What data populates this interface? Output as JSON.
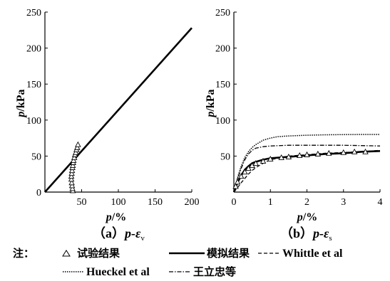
{
  "chart_data": [
    {
      "id": "a",
      "type": "line",
      "caption_prefix": "（a）",
      "caption_var": "p-ε",
      "caption_sub": "v",
      "ylabel_var": "p",
      "ylabel_unit": "/kPa",
      "xlabel_var": "p",
      "xlabel_unit": "/%",
      "xlim": [
        0,
        200
      ],
      "ylim": [
        0,
        250
      ],
      "xticks": [
        50,
        100,
        150,
        200
      ],
      "yticks": [
        0,
        50,
        100,
        150,
        200,
        250
      ],
      "series": [
        {
          "key": "model",
          "style": "solid",
          "x": [
            0,
            200
          ],
          "y": [
            0,
            228
          ]
        },
        {
          "key": "test",
          "style": "triangle",
          "x": [
            38.0,
            37.5,
            37.0,
            36.5,
            36.0,
            36.0,
            36.5,
            37.0,
            37.5,
            38.0,
            38.5,
            39.0,
            40.0,
            41.0,
            42.0,
            43.0,
            44.0,
            45.0
          ],
          "y": [
            2,
            5,
            9,
            13,
            18,
            22,
            26,
            30,
            34,
            37,
            41,
            44,
            48,
            52,
            55,
            59,
            62,
            66
          ]
        }
      ]
    },
    {
      "id": "b",
      "type": "line",
      "caption_prefix": "（b）",
      "caption_var": "p-ε",
      "caption_sub": "s",
      "ylabel_var": "p",
      "ylabel_unit": "/kPa",
      "xlabel_var": "p",
      "xlabel_unit": "/%",
      "xlim": [
        0,
        4
      ],
      "ylim": [
        0,
        250
      ],
      "xticks": [
        0,
        1,
        2,
        3,
        4
      ],
      "yticks": [
        50,
        100,
        150,
        200,
        250
      ],
      "series": [
        {
          "key": "model",
          "style": "solid",
          "x": [
            0,
            0.1,
            0.2,
            0.3,
            0.4,
            0.5,
            0.6,
            0.8,
            1.0,
            1.5,
            2.0,
            2.5,
            3.0,
            3.5,
            4.0
          ],
          "y": [
            0,
            13,
            23,
            31,
            36,
            40,
            42,
            45,
            47,
            49,
            51,
            53,
            54,
            56,
            57
          ]
        },
        {
          "key": "whittle",
          "style": "dash",
          "x": [
            0,
            0.1,
            0.2,
            0.3,
            0.4,
            0.5,
            0.6,
            0.8,
            1.0,
            1.5,
            2.0,
            2.5,
            3.0,
            3.5,
            4.0
          ],
          "y": [
            0,
            6,
            13,
            19,
            25,
            30,
            34,
            40,
            45,
            50,
            52,
            54,
            55,
            56,
            58
          ]
        },
        {
          "key": "hueckel",
          "style": "dot",
          "x": [
            0,
            0.1,
            0.2,
            0.3,
            0.4,
            0.5,
            0.6,
            0.8,
            1.0,
            1.2,
            1.5,
            2.0,
            2.5,
            3.0,
            3.5,
            4.0
          ],
          "y": [
            0,
            20,
            36,
            48,
            56,
            62,
            66,
            72,
            75,
            77,
            78,
            79,
            79.5,
            79.8,
            80,
            80
          ]
        },
        {
          "key": "wang",
          "style": "dashdot",
          "x": [
            0,
            0.1,
            0.2,
            0.3,
            0.4,
            0.5,
            0.6,
            0.8,
            1.0,
            1.5,
            2.0,
            2.5,
            3.0,
            3.5,
            4.0
          ],
          "y": [
            0,
            18,
            33,
            45,
            53,
            58,
            61,
            63,
            64,
            65,
            65,
            65,
            65,
            64.5,
            64
          ]
        },
        {
          "key": "test",
          "style": "triangle",
          "x": [
            0.05,
            0.1,
            0.2,
            0.3,
            0.4,
            0.5,
            0.6,
            0.8,
            1.0,
            1.3,
            1.5,
            1.8,
            2.0,
            2.3,
            2.6,
            3.0,
            3.3,
            3.6
          ],
          "y": [
            8,
            14,
            22,
            28,
            33,
            37,
            40,
            43,
            46,
            48,
            49,
            51,
            52,
            53,
            54,
            55,
            56,
            56
          ]
        }
      ]
    }
  ],
  "legend": {
    "prefix": "注：",
    "items": [
      {
        "key": "test",
        "label": "试验结果"
      },
      {
        "key": "model",
        "label": "模拟结果"
      },
      {
        "key": "whittle",
        "label": "Whittle et al"
      },
      {
        "key": "hueckel",
        "label": "Hueckel et al"
      },
      {
        "key": "wang",
        "label": "王立忠等"
      }
    ]
  },
  "colors": {
    "ink": "#000000",
    "background": "#ffffff"
  }
}
